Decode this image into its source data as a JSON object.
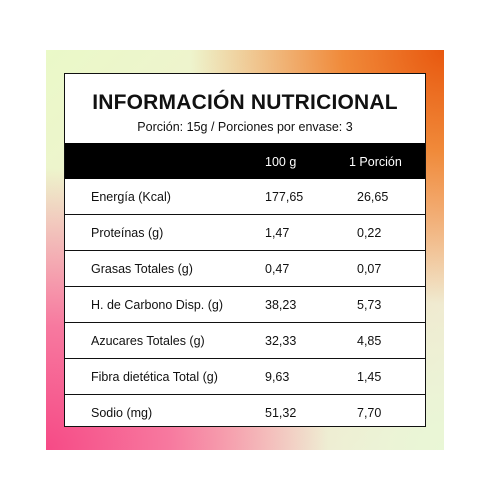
{
  "title": "INFORMACIÓN NUTRICIONAL",
  "subtitle": "Porción: 15g  / Porciones por envase: 3",
  "columns": {
    "per100": "100 g",
    "perPortion": "1 Porción"
  },
  "rows": [
    {
      "label": "Energía (Kcal)",
      "per100": "177,65",
      "perPortion": "26,65"
    },
    {
      "label": "Proteínas (g)",
      "per100": "1,47",
      "perPortion": "0,22"
    },
    {
      "label": "Grasas Totales (g)",
      "per100": "0,47",
      "perPortion": "0,07"
    },
    {
      "label": "H. de Carbono Disp. (g)",
      "per100": "38,23",
      "perPortion": "5,73"
    },
    {
      "label": "Azucares Totales (g)",
      "per100": "32,33",
      "perPortion": "4,85"
    },
    {
      "label": "Fibra dietética Total (g)",
      "per100": "9,63",
      "perPortion": "1,45"
    },
    {
      "label": "Sodio (mg)",
      "per100": "51,32",
      "perPortion": "7,70"
    }
  ]
}
